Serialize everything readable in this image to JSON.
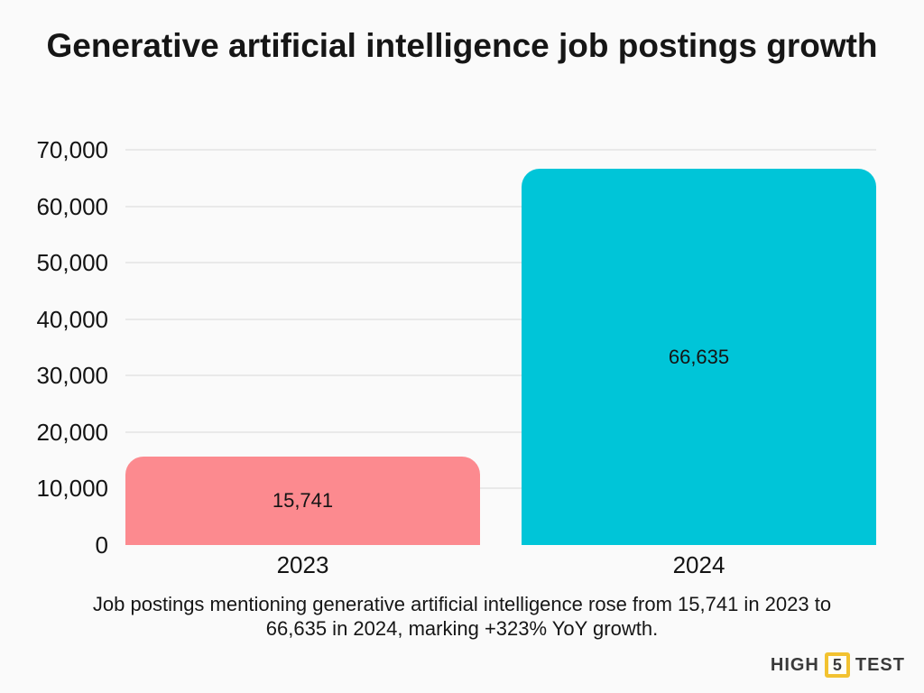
{
  "title": "Generative artificial intelligence job postings growth",
  "chart_data": {
    "type": "bar",
    "title": "Generative artificial intelligence job postings growth",
    "categories": [
      "2023",
      "2024"
    ],
    "values": [
      15741,
      66635
    ],
    "value_labels": [
      "15,741",
      "66,635"
    ],
    "bar_colors": [
      "#fc8a8f",
      "#00c5d8"
    ],
    "xlabel": "",
    "ylabel": "",
    "ylim": [
      0,
      70000
    ],
    "yticks": [
      0,
      10000,
      20000,
      30000,
      40000,
      50000,
      60000,
      70000
    ],
    "ytick_labels": [
      "0",
      "10,000",
      "20,000",
      "30,000",
      "40,000",
      "50,000",
      "60,000",
      "70,000"
    ],
    "grid": true,
    "legend": "none",
    "background": "#fafafa"
  },
  "caption": "Job postings mentioning generative artificial intelligence rose from 15,741 in 2023 to 66,635 in 2024, marking +323% YoY growth.",
  "logo": {
    "left_text": "HIGH",
    "badge_text": "5",
    "right_text": "TEST",
    "badge_color": "#f2c230",
    "text_color": "#3a3a3a"
  }
}
